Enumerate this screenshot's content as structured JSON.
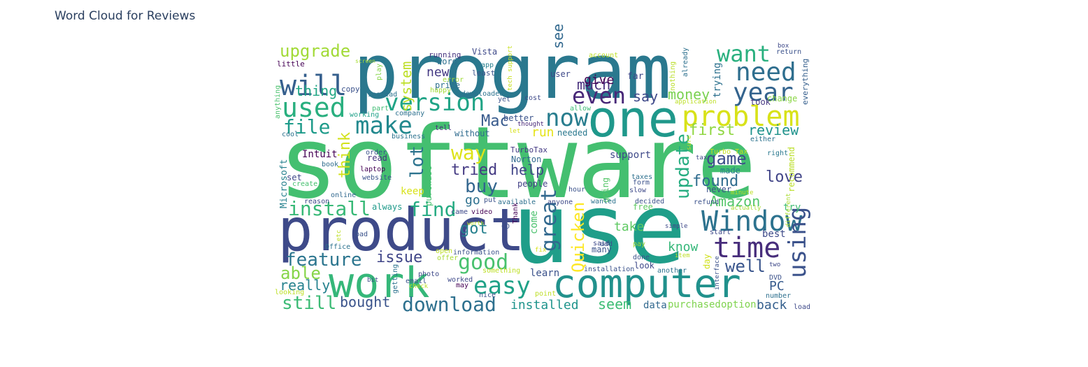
{
  "chart_data": {
    "type": "wordcloud",
    "title": "Word Cloud for Reviews",
    "words": [
      {
        "text": "software",
        "color": "#44bf70"
      },
      {
        "text": "use",
        "color": "#1f9e89"
      },
      {
        "text": "program",
        "color": "#2a788e"
      },
      {
        "text": "product",
        "color": "#3e4a89"
      },
      {
        "text": "one",
        "color": "#1f988b"
      },
      {
        "text": "work",
        "color": "#35b779"
      },
      {
        "text": "computer",
        "color": "#21918c"
      },
      {
        "text": "problem",
        "color": "#d8e219"
      },
      {
        "text": "Window",
        "color": "#2c728e"
      },
      {
        "text": "time",
        "color": "#472d7b"
      },
      {
        "text": "will",
        "color": "#355f8d"
      },
      {
        "text": "need",
        "color": "#2e6e8e"
      },
      {
        "text": "year",
        "color": "#33638d"
      },
      {
        "text": "used",
        "color": "#29af7f"
      },
      {
        "text": "version",
        "color": "#20a486"
      },
      {
        "text": "now",
        "color": "#287d8e"
      },
      {
        "text": "easy",
        "color": "#1fa187"
      },
      {
        "text": "want",
        "color": "#2ab07f"
      },
      {
        "text": "even",
        "color": "#482878"
      },
      {
        "text": "make",
        "color": "#23898e"
      },
      {
        "text": "using",
        "color": "#3b528b"
      },
      {
        "text": "great",
        "color": "#31688e"
      },
      {
        "text": "download",
        "color": "#2d708e"
      },
      {
        "text": "good",
        "color": "#48c16e"
      },
      {
        "text": "find",
        "color": "#25ab82"
      },
      {
        "text": "install",
        "color": "#38b977"
      },
      {
        "text": "upgrade",
        "color": "#a2da37"
      },
      {
        "text": "file",
        "color": "#1e9b8a"
      },
      {
        "text": "feature",
        "color": "#2b758e"
      },
      {
        "text": "update",
        "color": "#26ad81"
      },
      {
        "text": "way",
        "color": "#dde318"
      },
      {
        "text": "well",
        "color": "#39558c"
      },
      {
        "text": "buy",
        "color": "#32658e"
      },
      {
        "text": "game",
        "color": "#3d4e8a"
      },
      {
        "text": "Quicken",
        "color": "#fde725"
      },
      {
        "text": "lot",
        "color": "#2c738e"
      },
      {
        "text": "still",
        "color": "#3cbb75"
      },
      {
        "text": "tried",
        "color": "#443a83"
      },
      {
        "text": "think",
        "color": "#d2e21b"
      },
      {
        "text": "Mac",
        "color": "#375a8c"
      },
      {
        "text": "first",
        "color": "#90d743"
      },
      {
        "text": "love",
        "color": "#414487"
      },
      {
        "text": "found",
        "color": "#2f6c8e"
      },
      {
        "text": "got",
        "color": "#26818e"
      },
      {
        "text": "Amazon",
        "color": "#52c569"
      },
      {
        "text": "able",
        "color": "#86d549"
      },
      {
        "text": "really",
        "color": "#26828e"
      },
      {
        "text": "issue",
        "color": "#404688"
      },
      {
        "text": "money",
        "color": "#7ad151"
      },
      {
        "text": "system",
        "color": "#bddf26"
      },
      {
        "text": "much",
        "color": "#472f7d"
      },
      {
        "text": "review",
        "color": "#20938c"
      },
      {
        "text": "help",
        "color": "#404588"
      },
      {
        "text": "thing",
        "color": "#22a785"
      },
      {
        "text": "say",
        "color": "#3e4989"
      },
      {
        "text": "see",
        "color": "#31688e"
      },
      {
        "text": "bought",
        "color": "#3a538b"
      },
      {
        "text": "installed",
        "color": "#1f948c"
      },
      {
        "text": "seem",
        "color": "#3dbc74"
      },
      {
        "text": "back",
        "color": "#355f8d"
      },
      {
        "text": "give",
        "color": "#440154"
      },
      {
        "text": "new",
        "color": "#443983"
      },
      {
        "text": "run",
        "color": "#e5e419"
      },
      {
        "text": "take",
        "color": "#5ec962"
      },
      {
        "text": "know",
        "color": "#35b779"
      },
      {
        "text": "go",
        "color": "#2d708e"
      },
      {
        "text": "PC",
        "color": "#375b8d"
      },
      {
        "text": "trying",
        "color": "#2d718e"
      },
      {
        "text": "Microsoft",
        "color": "#26818e"
      },
      {
        "text": "recommend",
        "color": "#bade28"
      },
      {
        "text": "support",
        "color": "#3e4989"
      },
      {
        "text": "Intuit",
        "color": "#440154"
      },
      {
        "text": "purchased",
        "color": "#7fd34e"
      },
      {
        "text": "option",
        "color": "#7fd34e"
      },
      {
        "text": "data",
        "color": "#31688e"
      },
      {
        "text": "learn",
        "color": "#3b528b"
      },
      {
        "text": "come",
        "color": "#4ac16d"
      },
      {
        "text": "try",
        "color": "#3fbc73"
      },
      {
        "text": "best",
        "color": "#3e4a89"
      },
      {
        "text": "day",
        "color": "#d0e11c"
      },
      {
        "text": "keep",
        "color": "#d8e219"
      },
      {
        "text": "purchase",
        "color": "#46c06f"
      },
      {
        "text": "always",
        "color": "#1f9a8a"
      },
      {
        "text": "better",
        "color": "#3a538b"
      },
      {
        "text": "needed",
        "color": "#2a788e"
      },
      {
        "text": "without",
        "color": "#2f6b8e"
      },
      {
        "text": "people",
        "color": "#424086"
      },
      {
        "text": "Norton",
        "color": "#31688e"
      },
      {
        "text": "TurboTax",
        "color": "#443a83"
      },
      {
        "text": "made",
        "color": "#277f8e"
      },
      {
        "text": "never",
        "color": "#3b528b"
      },
      {
        "text": "going",
        "color": "#54c568"
      },
      {
        "text": "free",
        "color": "#5ec962"
      },
      {
        "text": "read",
        "color": "#46337f"
      },
      {
        "text": "set",
        "color": "#3f4788"
      },
      {
        "text": "laptop",
        "color": "#440154"
      },
      {
        "text": "website",
        "color": "#3b528b"
      },
      {
        "text": "everything",
        "color": "#355f8d"
      },
      {
        "text": "change",
        "color": "#8bd646"
      },
      {
        "text": "took",
        "color": "#453781"
      },
      {
        "text": "far",
        "color": "#3e4989"
      },
      {
        "text": "running",
        "color": "#46337f"
      },
      {
        "text": "word",
        "color": "#2d708e"
      },
      {
        "text": "Vista",
        "color": "#3e4989"
      },
      {
        "text": "app",
        "color": "#277f8e"
      },
      {
        "text": "least",
        "color": "#3a538b"
      },
      {
        "text": "price",
        "color": "#2d708e"
      },
      {
        "text": "little",
        "color": "#440154"
      },
      {
        "text": "copy",
        "color": "#3b528b"
      },
      {
        "text": "instead",
        "color": "#2c728e"
      },
      {
        "text": "part",
        "color": "#3fbc73"
      },
      {
        "text": "working",
        "color": "#1fa088"
      },
      {
        "text": "company",
        "color": "#2d708e"
      },
      {
        "text": "tell",
        "color": "#472d7b"
      },
      {
        "text": "business",
        "color": "#2c728e"
      },
      {
        "text": "order",
        "color": "#3b528b"
      },
      {
        "text": "book",
        "color": "#2f6c8e"
      },
      {
        "text": "create",
        "color": "#46c06f"
      },
      {
        "text": "online",
        "color": "#31688e"
      },
      {
        "text": "reason",
        "color": "#3e4989"
      },
      {
        "text": "anything",
        "color": "#4ac16d"
      },
      {
        "text": "cool",
        "color": "#2c728e"
      },
      {
        "text": "screen",
        "color": "#a8db34"
      },
      {
        "text": "play",
        "color": "#86d549"
      },
      {
        "text": "account",
        "color": "#bddf26"
      },
      {
        "text": "return",
        "color": "#3b528b"
      },
      {
        "text": "box",
        "color": "#3e4989"
      },
      {
        "text": "already",
        "color": "#2d708e"
      },
      {
        "text": "nothing",
        "color": "#bade28"
      },
      {
        "text": "application",
        "color": "#bddf26"
      },
      {
        "text": "cost",
        "color": "#3e4989"
      },
      {
        "text": "thought",
        "color": "#482878"
      },
      {
        "text": "allow",
        "color": "#3dbc74"
      },
      {
        "text": "error",
        "color": "#a0da39"
      },
      {
        "text": "happy",
        "color": "#a2da37"
      },
      {
        "text": "downloaded",
        "color": "#2c728e"
      },
      {
        "text": "yet",
        "color": "#3b528b"
      },
      {
        "text": "tech support",
        "color": "#c8e020"
      },
      {
        "text": "user",
        "color": "#3e4989"
      },
      {
        "text": "let",
        "color": "#d8e219"
      },
      {
        "text": "Turbo Tax",
        "color": "#c5e021"
      },
      {
        "text": "sure",
        "color": "#bddf26"
      },
      {
        "text": "either",
        "color": "#2c728e"
      },
      {
        "text": "right",
        "color": "#2a788e"
      },
      {
        "text": "tax",
        "color": "#3e4989"
      },
      {
        "text": "taxes",
        "color": "#2d708e"
      },
      {
        "text": "form",
        "color": "#3b528b"
      },
      {
        "text": "slow",
        "color": "#3e4989"
      },
      {
        "text": "minute",
        "color": "#bddf26"
      },
      {
        "text": "refund",
        "color": "#3b528b"
      },
      {
        "text": "actually",
        "color": "#a8db34"
      },
      {
        "text": "different",
        "color": "#aadc32"
      },
      {
        "text": "decided",
        "color": "#3b528b"
      },
      {
        "text": "simple",
        "color": "#3e4989"
      },
      {
        "text": "start",
        "color": "#3e4989"
      },
      {
        "text": "interface",
        "color": "#3b528b"
      },
      {
        "text": "another",
        "color": "#2c728e"
      },
      {
        "text": "item",
        "color": "#bddf26"
      },
      {
        "text": "two",
        "color": "#3e4989"
      },
      {
        "text": "DVD",
        "color": "#3b528b"
      },
      {
        "text": "number",
        "color": "#2d708e"
      },
      {
        "text": "load",
        "color": "#3e4989"
      },
      {
        "text": "pay",
        "color": "#a0da39"
      },
      {
        "text": "done",
        "color": "#3b528b"
      },
      {
        "text": "look",
        "color": "#3e4989"
      },
      {
        "text": "installation",
        "color": "#3b528b"
      },
      {
        "text": "many",
        "color": "#3b528b"
      },
      {
        "text": "said",
        "color": "#3e4989"
      },
      {
        "text": "add",
        "color": "#3b528b"
      },
      {
        "text": "wanted",
        "color": "#2c728e"
      },
      {
        "text": "anyone",
        "color": "#3e4989"
      },
      {
        "text": "available",
        "color": "#2d708e"
      },
      {
        "text": "put",
        "color": "#3b528b"
      },
      {
        "text": "video",
        "color": "#440154"
      },
      {
        "text": "came",
        "color": "#3e4989"
      },
      {
        "text": "worth",
        "color": "#bddf26"
      },
      {
        "text": "Thank",
        "color": "#440154"
      },
      {
        "text": "CD",
        "color": "#3b528b"
      },
      {
        "text": "fix",
        "color": "#d8e219"
      },
      {
        "text": "Office",
        "color": "#2c728e"
      },
      {
        "text": "open",
        "color": "#bddf26"
      },
      {
        "text": "offer",
        "color": "#a8db34"
      },
      {
        "text": "information",
        "color": "#3b528b"
      },
      {
        "text": "something",
        "color": "#bddf26"
      },
      {
        "text": "photo",
        "color": "#3e4989"
      },
      {
        "text": "email",
        "color": "#3b528b"
      },
      {
        "text": "check",
        "color": "#bddf26"
      },
      {
        "text": "worked",
        "color": "#3e4989"
      },
      {
        "text": "may",
        "color": "#440154"
      },
      {
        "text": "nice",
        "color": "#3b528b"
      },
      {
        "text": "point",
        "color": "#bddf26"
      },
      {
        "text": "getting",
        "color": "#2c728e"
      },
      {
        "text": "looking",
        "color": "#bddf26"
      },
      {
        "text": "bad",
        "color": "#3b528b"
      },
      {
        "text": "etc",
        "color": "#bddf26"
      },
      {
        "text": "bit",
        "color": "#3e4989"
      },
      {
        "text": "hour",
        "color": "#3b528b"
      }
    ]
  }
}
